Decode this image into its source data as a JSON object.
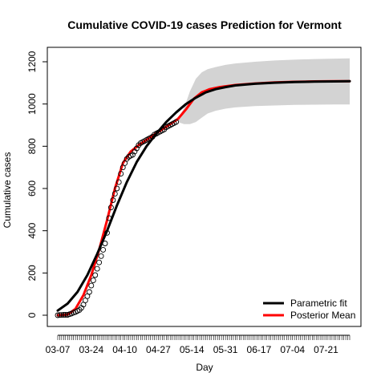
{
  "chart_data": {
    "type": "line",
    "title": "Cumulative COVID-19 cases Prediction for Vermont",
    "xlabel": "Day",
    "ylabel": "Cumulative cases",
    "x_type": "date",
    "xlim": [
      "2020-03-07",
      "2020-08-02"
    ],
    "ylim": [
      0,
      1200
    ],
    "y_ticks": [
      0,
      200,
      400,
      600,
      800,
      1000,
      1200
    ],
    "x_tick_labels": [
      "03-07",
      "03-24",
      "04-10",
      "04-27",
      "05-14",
      "05-31",
      "06-17",
      "07-04",
      "07-21"
    ],
    "x_tick_dates": [
      "2020-03-07",
      "2020-03-24",
      "2020-04-10",
      "2020-04-27",
      "2020-05-14",
      "2020-05-31",
      "2020-06-17",
      "2020-07-04",
      "2020-07-21"
    ],
    "grid": false,
    "legend_position": "bottom-right",
    "series": [
      {
        "name": "Parametric fit",
        "color": "#000000",
        "style": "line",
        "x": [
          "2020-03-07",
          "2020-03-12",
          "2020-03-17",
          "2020-03-22",
          "2020-03-27",
          "2020-04-01",
          "2020-04-06",
          "2020-04-11",
          "2020-04-16",
          "2020-04-21",
          "2020-04-26",
          "2020-05-01",
          "2020-05-06",
          "2020-05-11",
          "2020-05-16",
          "2020-05-21",
          "2020-05-26",
          "2020-05-31",
          "2020-06-05",
          "2020-06-15",
          "2020-06-25",
          "2020-07-05",
          "2020-07-15",
          "2020-07-25",
          "2020-08-02"
        ],
        "y": [
          22,
          55,
          110,
          190,
          290,
          400,
          520,
          630,
          725,
          800,
          860,
          915,
          960,
          1000,
          1030,
          1055,
          1070,
          1080,
          1088,
          1096,
          1101,
          1104,
          1106,
          1107,
          1108
        ]
      },
      {
        "name": "Posterior Mean",
        "color": "#ff0000",
        "style": "line",
        "x": [
          "2020-03-07",
          "2020-03-12",
          "2020-03-16",
          "2020-03-20",
          "2020-03-24",
          "2020-03-28",
          "2020-04-01",
          "2020-04-05",
          "2020-04-09",
          "2020-04-13",
          "2020-04-17",
          "2020-04-21",
          "2020-04-25",
          "2020-04-29",
          "2020-05-03",
          "2020-05-07",
          "2020-05-11",
          "2020-05-15",
          "2020-05-19",
          "2020-05-23",
          "2020-05-28",
          "2020-06-05",
          "2020-06-15",
          "2020-06-25",
          "2020-07-05",
          "2020-07-15",
          "2020-07-25",
          "2020-08-02"
        ],
        "y": [
          0,
          3,
          30,
          95,
          190,
          310,
          450,
          600,
          720,
          775,
          805,
          830,
          855,
          880,
          905,
          930,
          975,
          1025,
          1055,
          1070,
          1080,
          1090,
          1097,
          1102,
          1105,
          1107,
          1108,
          1108
        ]
      },
      {
        "name": "",
        "color": "#000000",
        "style": "points",
        "x": [
          "2020-03-07",
          "2020-03-08",
          "2020-03-09",
          "2020-03-10",
          "2020-03-11",
          "2020-03-12",
          "2020-03-13",
          "2020-03-14",
          "2020-03-15",
          "2020-03-16",
          "2020-03-17",
          "2020-03-18",
          "2020-03-19",
          "2020-03-20",
          "2020-03-21",
          "2020-03-22",
          "2020-03-23",
          "2020-03-24",
          "2020-03-25",
          "2020-03-26",
          "2020-03-27",
          "2020-03-28",
          "2020-03-29",
          "2020-03-30",
          "2020-03-31",
          "2020-04-01",
          "2020-04-02",
          "2020-04-03",
          "2020-04-04",
          "2020-04-05",
          "2020-04-06",
          "2020-04-07",
          "2020-04-08",
          "2020-04-09",
          "2020-04-10",
          "2020-04-11",
          "2020-04-12",
          "2020-04-13",
          "2020-04-14",
          "2020-04-15",
          "2020-04-16",
          "2020-04-17",
          "2020-04-18",
          "2020-04-19",
          "2020-04-20",
          "2020-04-21",
          "2020-04-22",
          "2020-04-23",
          "2020-04-24",
          "2020-04-25",
          "2020-04-26",
          "2020-04-27",
          "2020-04-28",
          "2020-04-29",
          "2020-04-30",
          "2020-05-01",
          "2020-05-02",
          "2020-05-03",
          "2020-05-04",
          "2020-05-05",
          "2020-05-06"
        ],
        "y": [
          0,
          1,
          1,
          2,
          2,
          2,
          5,
          8,
          12,
          15,
          20,
          25,
          35,
          50,
          70,
          90,
          110,
          140,
          165,
          190,
          220,
          250,
          280,
          310,
          340,
          390,
          460,
          510,
          545,
          575,
          600,
          630,
          670,
          700,
          720,
          740,
          750,
          755,
          760,
          775,
          790,
          805,
          815,
          820,
          825,
          830,
          835,
          840,
          845,
          855,
          860,
          865,
          870,
          875,
          880,
          890,
          895,
          900,
          905,
          910,
          915
        ]
      }
    ],
    "bands": [
      {
        "name": "",
        "color": "#d3d3d3",
        "x": [
          "2020-05-07",
          "2020-05-10",
          "2020-05-13",
          "2020-05-16",
          "2020-05-19",
          "2020-05-22",
          "2020-05-26",
          "2020-05-31",
          "2020-06-05",
          "2020-06-15",
          "2020-06-25",
          "2020-07-05",
          "2020-07-15",
          "2020-07-25",
          "2020-08-02"
        ],
        "upper": [
          930,
          980,
          1060,
          1120,
          1150,
          1165,
          1175,
          1185,
          1192,
          1200,
          1206,
          1210,
          1213,
          1215,
          1216
        ],
        "lower": [
          915,
          905,
          905,
          915,
          935,
          955,
          968,
          978,
          984,
          990,
          993,
          996,
          997,
          998,
          998
        ]
      }
    ]
  }
}
